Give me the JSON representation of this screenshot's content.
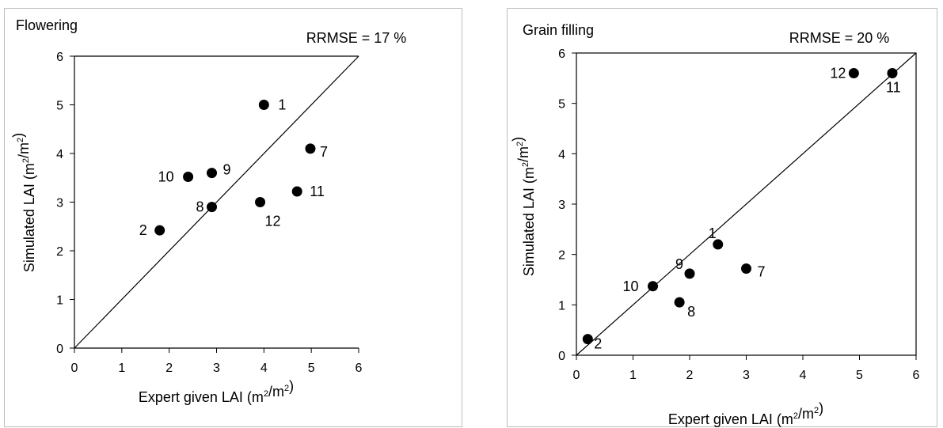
{
  "chart_data": [
    {
      "type": "scatter",
      "title": "Flowering",
      "annotation": "RRMSE = 17 %",
      "xlabel": "Expert given LAI (m²/m²)",
      "ylabel": "Simulated LAI (m²/m²)",
      "xlim": [
        0,
        6
      ],
      "ylim": [
        0,
        6
      ],
      "xticks": [
        0,
        1,
        2,
        3,
        4,
        5,
        6
      ],
      "yticks": [
        0,
        1,
        2,
        3,
        4,
        5,
        6
      ],
      "grid": false,
      "reference_line": "1:1",
      "points": [
        {
          "label": "1",
          "x": 4.0,
          "y": 5.0
        },
        {
          "label": "2",
          "x": 1.8,
          "y": 2.42
        },
        {
          "label": "7",
          "x": 4.98,
          "y": 4.1
        },
        {
          "label": "8",
          "x": 2.9,
          "y": 2.9
        },
        {
          "label": "9",
          "x": 2.9,
          "y": 3.6
        },
        {
          "label": "10",
          "x": 2.4,
          "y": 3.52
        },
        {
          "label": "11",
          "x": 4.7,
          "y": 3.22
        },
        {
          "label": "12",
          "x": 3.92,
          "y": 3.0
        }
      ]
    },
    {
      "type": "scatter",
      "title": "Grain filling",
      "annotation": "RRMSE = 20 %",
      "xlabel": "Expert given LAI (m²/m²)",
      "ylabel": "Simulated LAI (m²/m²)",
      "xlim": [
        0,
        6
      ],
      "ylim": [
        0,
        6
      ],
      "xticks": [
        0,
        1,
        2,
        3,
        4,
        5,
        6
      ],
      "yticks": [
        0,
        1,
        2,
        3,
        4,
        5,
        6
      ],
      "grid": false,
      "reference_line": "1:1",
      "points": [
        {
          "label": "1",
          "x": 2.5,
          "y": 2.2
        },
        {
          "label": "2",
          "x": 0.2,
          "y": 0.32
        },
        {
          "label": "7",
          "x": 3.0,
          "y": 1.72
        },
        {
          "label": "8",
          "x": 1.82,
          "y": 1.05
        },
        {
          "label": "9",
          "x": 2.0,
          "y": 1.62
        },
        {
          "label": "10",
          "x": 1.35,
          "y": 1.37
        },
        {
          "label": "11",
          "x": 5.58,
          "y": 5.6
        },
        {
          "label": "12",
          "x": 4.9,
          "y": 5.6
        }
      ]
    }
  ]
}
